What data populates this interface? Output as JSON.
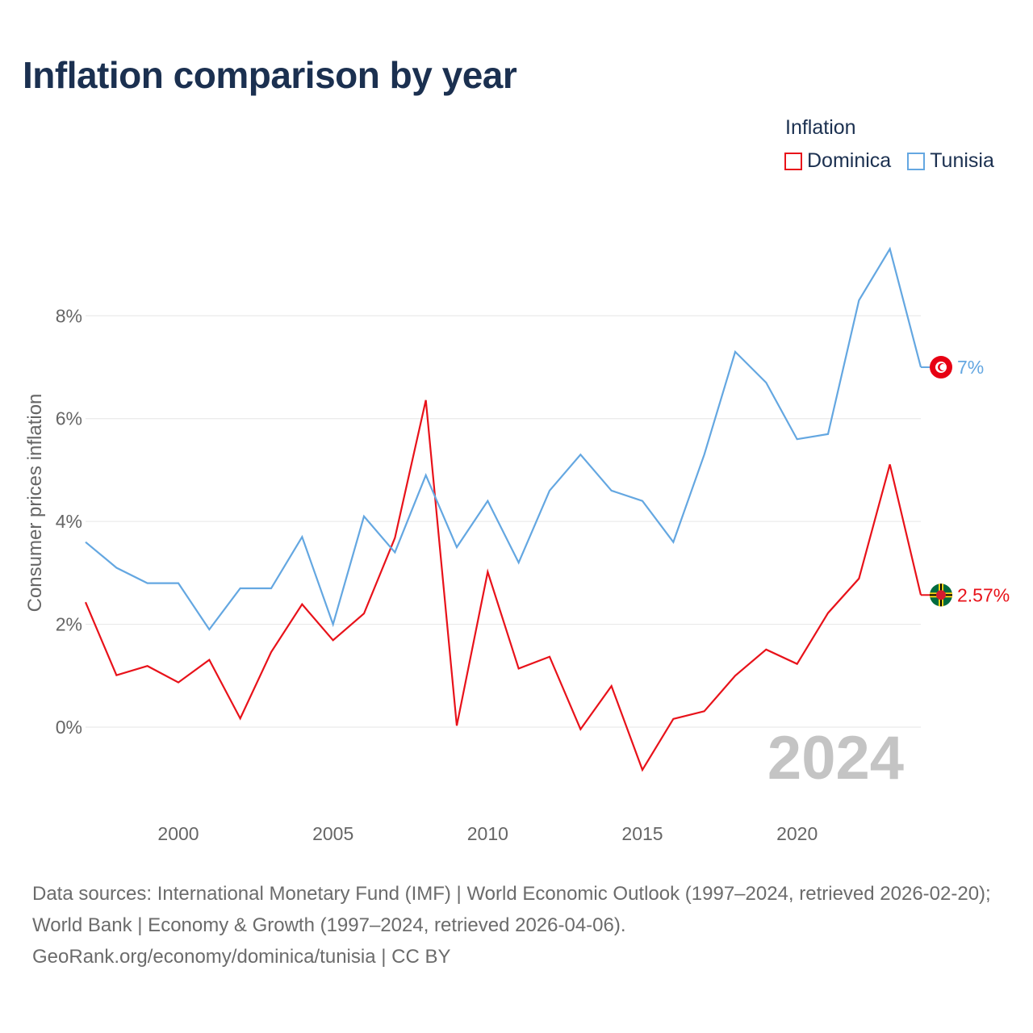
{
  "title": "Inflation comparison by year",
  "legend": {
    "title": "Inflation",
    "items": [
      {
        "label": "Dominica",
        "color": "#e8121a"
      },
      {
        "label": "Tunisia",
        "color": "#64a7e1"
      }
    ]
  },
  "footer": {
    "sources": "Data sources: International Monetary Fund (IMF) | World Economic Outlook (1997–2024, retrieved 2026-02-20); World Bank | Economy & Growth (1997–2024, retrieved 2026-04-06).",
    "credit": "GeoRank.org/economy/dominica/tunisia | CC BY"
  },
  "chart_data": {
    "type": "line",
    "title": "Inflation comparison by year",
    "xlabel": "",
    "ylabel": "Consumer prices inflation",
    "year_watermark": "2024",
    "xlim": [
      1997,
      2024
    ],
    "ylim": [
      -1.6,
      10.5
    ],
    "xticks": [
      2000,
      2005,
      2010,
      2015,
      2020
    ],
    "yticks": [
      {
        "value": 0,
        "label": "0%"
      },
      {
        "value": 2,
        "label": "2%"
      },
      {
        "value": 4,
        "label": "4%"
      },
      {
        "value": 6,
        "label": "6%"
      },
      {
        "value": 8,
        "label": "8%"
      }
    ],
    "grid": true,
    "x": [
      1997,
      1998,
      1999,
      2000,
      2001,
      2002,
      2003,
      2004,
      2005,
      2006,
      2007,
      2008,
      2009,
      2010,
      2011,
      2012,
      2013,
      2014,
      2015,
      2016,
      2017,
      2018,
      2019,
      2020,
      2021,
      2022,
      2023,
      2024
    ],
    "series": [
      {
        "name": "Dominica",
        "color": "#e8121a",
        "end_label": "2.57%",
        "values": [
          2.43,
          1.01,
          1.19,
          0.87,
          1.31,
          0.17,
          1.46,
          2.39,
          1.69,
          2.21,
          3.68,
          6.36,
          0.03,
          3.02,
          1.14,
          1.37,
          -0.04,
          0.8,
          -0.83,
          0.16,
          0.31,
          1.0,
          1.51,
          1.23,
          2.22,
          2.89,
          5.11,
          2.57
        ]
      },
      {
        "name": "Tunisia",
        "color": "#64a7e1",
        "end_label": "7%",
        "values": [
          3.6,
          3.1,
          2.8,
          2.8,
          1.9,
          2.7,
          2.7,
          3.7,
          2.0,
          4.1,
          3.4,
          4.9,
          3.5,
          4.4,
          3.2,
          4.6,
          5.3,
          4.6,
          4.4,
          3.6,
          5.3,
          7.3,
          6.7,
          5.6,
          5.7,
          8.3,
          9.3,
          7.0
        ]
      }
    ]
  }
}
